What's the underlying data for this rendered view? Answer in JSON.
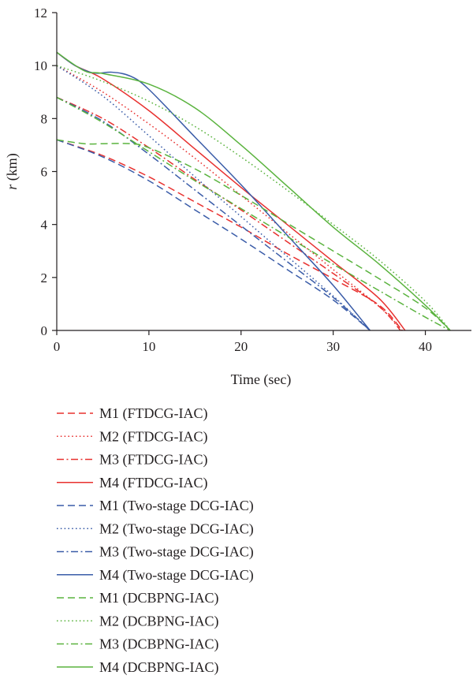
{
  "chart_data": {
    "type": "line",
    "xlabel": "Time (sec)",
    "ylabel": {
      "symbol": "r",
      "unit": " (km)"
    },
    "xlim": [
      0,
      45
    ],
    "ylim": [
      0,
      12
    ],
    "xticks": [
      0,
      10,
      20,
      30,
      40
    ],
    "yticks": [
      0,
      2,
      4,
      6,
      8,
      10,
      12
    ],
    "grid": false,
    "legend_position": "below",
    "series": [
      {
        "name": "M1 (FTDCG-IAC)",
        "color": "#e8312f",
        "style": "dashed",
        "x": [
          0,
          5,
          10,
          15,
          20,
          25,
          30,
          35,
          37.5
        ],
        "y": [
          7.2,
          6.6,
          5.8,
          4.85,
          3.9,
          2.9,
          1.95,
          0.95,
          0
        ]
      },
      {
        "name": "M2 (FTDCG-IAC)",
        "color": "#e8312f",
        "style": "dotted",
        "x": [
          0,
          5,
          10,
          15,
          20,
          25,
          30,
          35,
          37.5
        ],
        "y": [
          10.0,
          9.0,
          7.8,
          6.5,
          5.1,
          3.7,
          2.3,
          0.9,
          0
        ]
      },
      {
        "name": "M3 (FTDCG-IAC)",
        "color": "#e8312f",
        "style": "dashdot",
        "x": [
          0,
          5,
          10,
          15,
          20,
          25,
          30,
          35,
          37.3
        ],
        "y": [
          8.8,
          8.0,
          6.9,
          5.7,
          4.55,
          3.35,
          2.15,
          0.9,
          0
        ]
      },
      {
        "name": "M4 (FTDCG-IAC)",
        "color": "#e8312f",
        "style": "solid",
        "x": [
          0,
          2,
          5,
          10,
          15,
          20,
          25,
          30,
          35,
          37.8
        ],
        "y": [
          10.5,
          10.0,
          9.5,
          8.3,
          6.85,
          5.4,
          4.0,
          2.6,
          1.2,
          0
        ]
      },
      {
        "name": "M1 (Two-stage DCG-IAC)",
        "color": "#3a5ca8",
        "style": "dashed",
        "x": [
          0,
          5,
          10,
          15,
          20,
          25,
          30,
          34
        ],
        "y": [
          7.2,
          6.55,
          5.65,
          4.55,
          3.45,
          2.3,
          1.15,
          0
        ]
      },
      {
        "name": "M2 (Two-stage DCG-IAC)",
        "color": "#3a5ca8",
        "style": "dotted",
        "x": [
          0,
          5,
          10,
          15,
          20,
          25,
          30,
          34
        ],
        "y": [
          10.0,
          8.85,
          7.35,
          5.8,
          4.3,
          2.8,
          1.3,
          0
        ]
      },
      {
        "name": "M3 (Two-stage DCG-IAC)",
        "color": "#3a5ca8",
        "style": "dashdot",
        "x": [
          0,
          5,
          10,
          15,
          20,
          25,
          30,
          34
        ],
        "y": [
          8.8,
          7.9,
          6.65,
          5.3,
          3.95,
          2.6,
          1.25,
          0
        ]
      },
      {
        "name": "M4 (Two-stage DCG-IAC)",
        "color": "#3a5ca8",
        "style": "solid",
        "x": [
          0,
          2,
          4,
          6,
          8,
          10,
          15,
          20,
          25,
          30,
          34
        ],
        "y": [
          10.5,
          10.0,
          9.72,
          9.75,
          9.6,
          9.1,
          7.3,
          5.5,
          3.6,
          1.7,
          0
        ]
      },
      {
        "name": "M1 (DCBPNG-IAC)",
        "color": "#5ab33e",
        "style": "dashed",
        "x": [
          0,
          3,
          5,
          8,
          10,
          15,
          20,
          25,
          30,
          35,
          40,
          42.7
        ],
        "y": [
          7.2,
          7.05,
          7.05,
          7.05,
          6.9,
          6.1,
          5.1,
          4.05,
          3.0,
          1.95,
          0.85,
          0
        ]
      },
      {
        "name": "M2 (DCBPNG-IAC)",
        "color": "#5ab33e",
        "style": "dotted",
        "x": [
          0,
          5,
          10,
          15,
          20,
          25,
          30,
          35,
          40,
          42.7
        ],
        "y": [
          10.0,
          9.4,
          8.65,
          7.7,
          6.55,
          5.3,
          4.0,
          2.65,
          1.1,
          0
        ]
      },
      {
        "name": "M3 (DCBPNG-IAC)",
        "color": "#5ab33e",
        "style": "dashdot",
        "x": [
          0,
          5,
          10,
          15,
          20,
          25,
          30,
          35,
          40,
          42.7
        ],
        "y": [
          8.8,
          7.85,
          6.75,
          5.65,
          4.6,
          3.55,
          2.5,
          1.5,
          0.5,
          0
        ]
      },
      {
        "name": "M4 (DCBPNG-IAC)",
        "color": "#5ab33e",
        "style": "solid",
        "x": [
          0,
          3,
          5,
          10,
          15,
          20,
          25,
          30,
          35,
          40,
          42.7
        ],
        "y": [
          10.5,
          9.8,
          9.7,
          9.3,
          8.4,
          7.0,
          5.45,
          3.9,
          2.5,
          0.95,
          0
        ]
      }
    ]
  }
}
